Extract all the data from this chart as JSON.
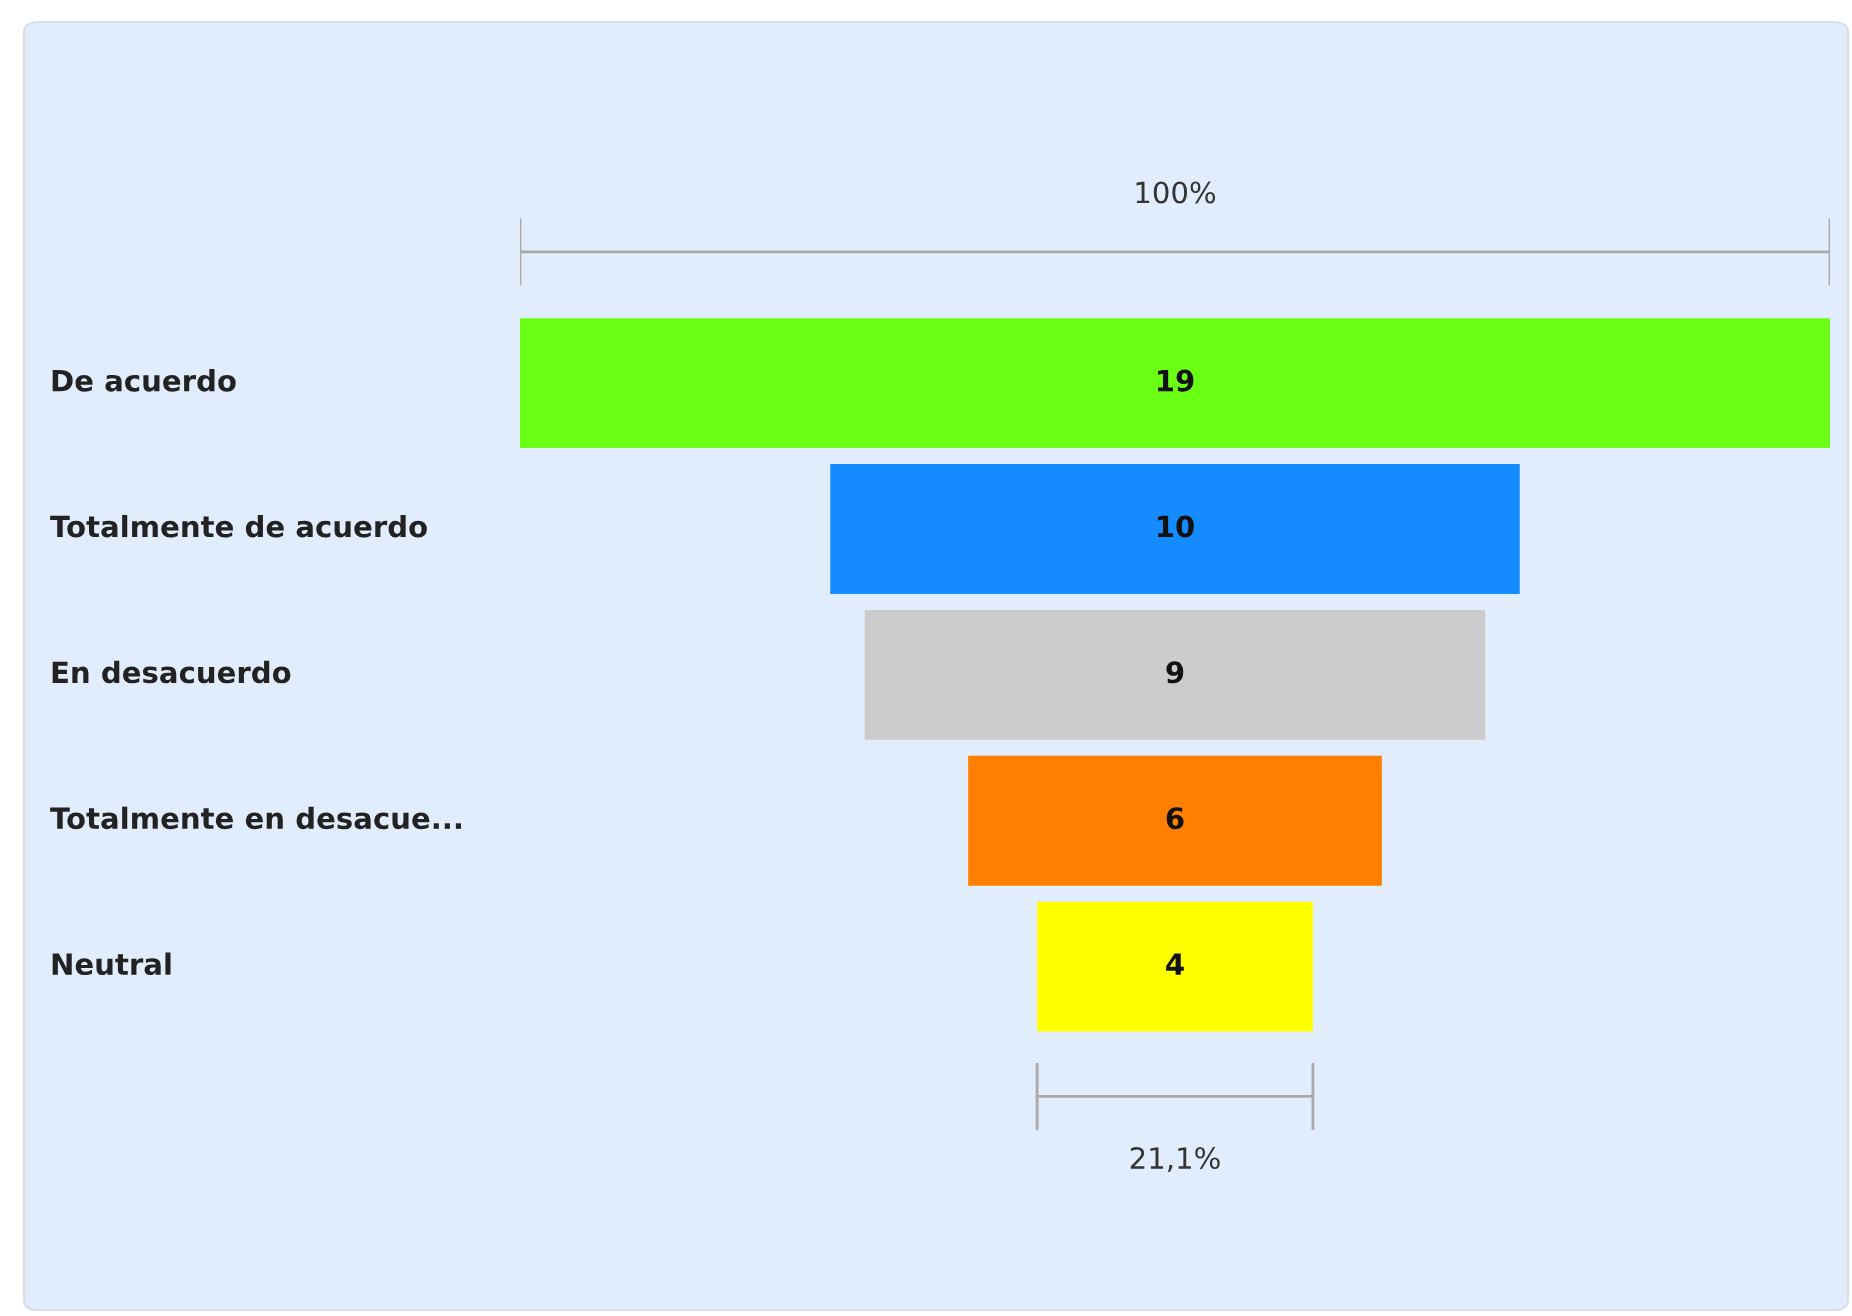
{
  "chart_data": {
    "type": "other",
    "categories": [
      "De acuerdo",
      "Totalmente de acuerdo",
      "En desacuerdo",
      "Totalmente en desacue...",
      "Neutral"
    ],
    "values": [
      19,
      10,
      9,
      6,
      4
    ],
    "colors": [
      "#6aff14",
      "#148cff",
      "#cccccc",
      "#ff8000",
      "#ffff00"
    ],
    "data_labels": true,
    "annotations": [
      "100%",
      "21,1%"
    ]
  }
}
